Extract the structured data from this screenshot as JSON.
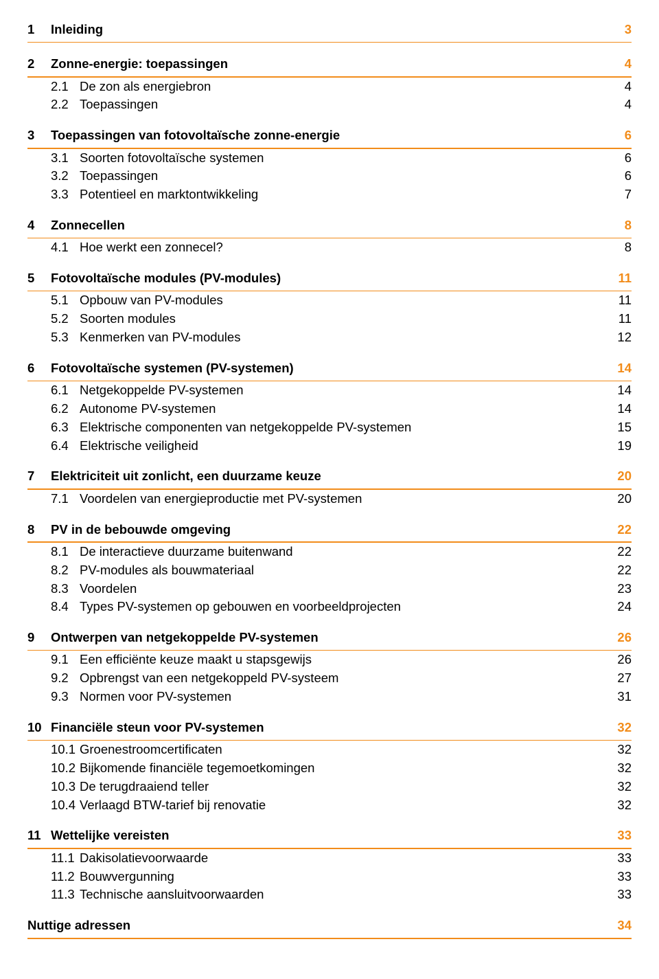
{
  "colors": {
    "accent": "#f28c1a",
    "text": "#000000",
    "background": "#ffffff"
  },
  "typography": {
    "font_family": "Century Gothic / Futura",
    "body_fontsize_pt": 14,
    "bold_weight": 700
  },
  "sections": [
    {
      "num": "1",
      "title": "Inleiding",
      "page": "3",
      "items": []
    },
    {
      "num": "2",
      "title": "Zonne-energie: toepassingen",
      "page": "4",
      "items": [
        {
          "num": "2.1",
          "title": "De zon als energiebron",
          "page": "4"
        },
        {
          "num": "2.2",
          "title": "Toepassingen",
          "page": "4"
        }
      ]
    },
    {
      "num": "3",
      "title": "Toepassingen van fotovoltaïsche zonne-energie",
      "page": "6",
      "items": [
        {
          "num": "3.1",
          "title": "Soorten fotovoltaïsche systemen",
          "page": "6"
        },
        {
          "num": "3.2",
          "title": "Toepassingen",
          "page": "6"
        },
        {
          "num": "3.3",
          "title": "Potentieel en marktontwikkeling",
          "page": "7"
        }
      ]
    },
    {
      "num": "4",
      "title": "Zonnecellen",
      "page": "8",
      "items": [
        {
          "num": "4.1",
          "title": "Hoe werkt een zonnecel?",
          "page": "8"
        }
      ]
    },
    {
      "num": "5",
      "title": "Fotovoltaïsche modules (PV-modules)",
      "page": "11",
      "items": [
        {
          "num": "5.1",
          "title": "Opbouw van PV-modules",
          "page": "11"
        },
        {
          "num": "5.2",
          "title": "Soorten modules",
          "page": "11"
        },
        {
          "num": "5.3",
          "title": "Kenmerken van PV-modules",
          "page": "12"
        }
      ]
    },
    {
      "num": "6",
      "title": "Fotovoltaïsche systemen (PV-systemen)",
      "page": "14",
      "items": [
        {
          "num": "6.1",
          "title": "Netgekoppelde PV-systemen",
          "page": "14"
        },
        {
          "num": "6.2",
          "title": "Autonome PV-systemen",
          "page": "14"
        },
        {
          "num": "6.3",
          "title": "Elektrische componenten van netgekoppelde PV-systemen",
          "page": "15"
        },
        {
          "num": "6.4",
          "title": "Elektrische veiligheid",
          "page": "19"
        }
      ]
    },
    {
      "num": "7",
      "title": "Elektriciteit uit zonlicht, een duurzame keuze",
      "page": "20",
      "items": [
        {
          "num": "7.1",
          "title": "Voordelen van energieproductie met PV-systemen",
          "page": "20"
        }
      ]
    },
    {
      "num": "8",
      "title": "PV in de bebouwde omgeving",
      "page": "22",
      "items": [
        {
          "num": "8.1",
          "title": "De interactieve duurzame buitenwand",
          "page": "22"
        },
        {
          "num": "8.2",
          "title": "PV-modules als bouwmateriaal",
          "page": "22"
        },
        {
          "num": "8.3",
          "title": "Voordelen",
          "page": "23"
        },
        {
          "num": "8.4",
          "title": "Types PV-systemen op gebouwen en voorbeeldprojecten",
          "page": "24"
        }
      ]
    },
    {
      "num": "9",
      "title": "Ontwerpen van netgekoppelde PV-systemen",
      "page": "26",
      "items": [
        {
          "num": "9.1",
          "title": "Een efficiënte keuze maakt u stapsgewijs",
          "page": "26"
        },
        {
          "num": "9.2",
          "title": "Opbrengst van een netgekoppeld PV-systeem",
          "page": "27"
        },
        {
          "num": "9.3",
          "title": "Normen voor PV-systemen",
          "page": "31"
        }
      ]
    },
    {
      "num": "10",
      "title": "Financiële steun voor PV-systemen",
      "page": "32",
      "items": [
        {
          "num": "10.1",
          "title": "Groenestroomcertificaten",
          "page": "32"
        },
        {
          "num": "10.2",
          "title": "Bijkomende financiële tegemoetkomingen",
          "page": "32"
        },
        {
          "num": "10.3",
          "title": "De terugdraaiend teller",
          "page": "32"
        },
        {
          "num": "10.4",
          "title": "Verlaagd BTW-tarief bij renovatie",
          "page": "32"
        }
      ]
    },
    {
      "num": "11",
      "title": "Wettelijke vereisten",
      "page": "33",
      "items": [
        {
          "num": "11.1",
          "title": "Dakisolatievoorwaarde",
          "page": "33"
        },
        {
          "num": "11.2",
          "title": "Bouwvergunning",
          "page": "33"
        },
        {
          "num": "11.3",
          "title": "Technische aansluitvoorwaarden",
          "page": "33"
        }
      ]
    },
    {
      "num": "",
      "title": "Nuttige adressen",
      "page": "34",
      "items": []
    }
  ]
}
